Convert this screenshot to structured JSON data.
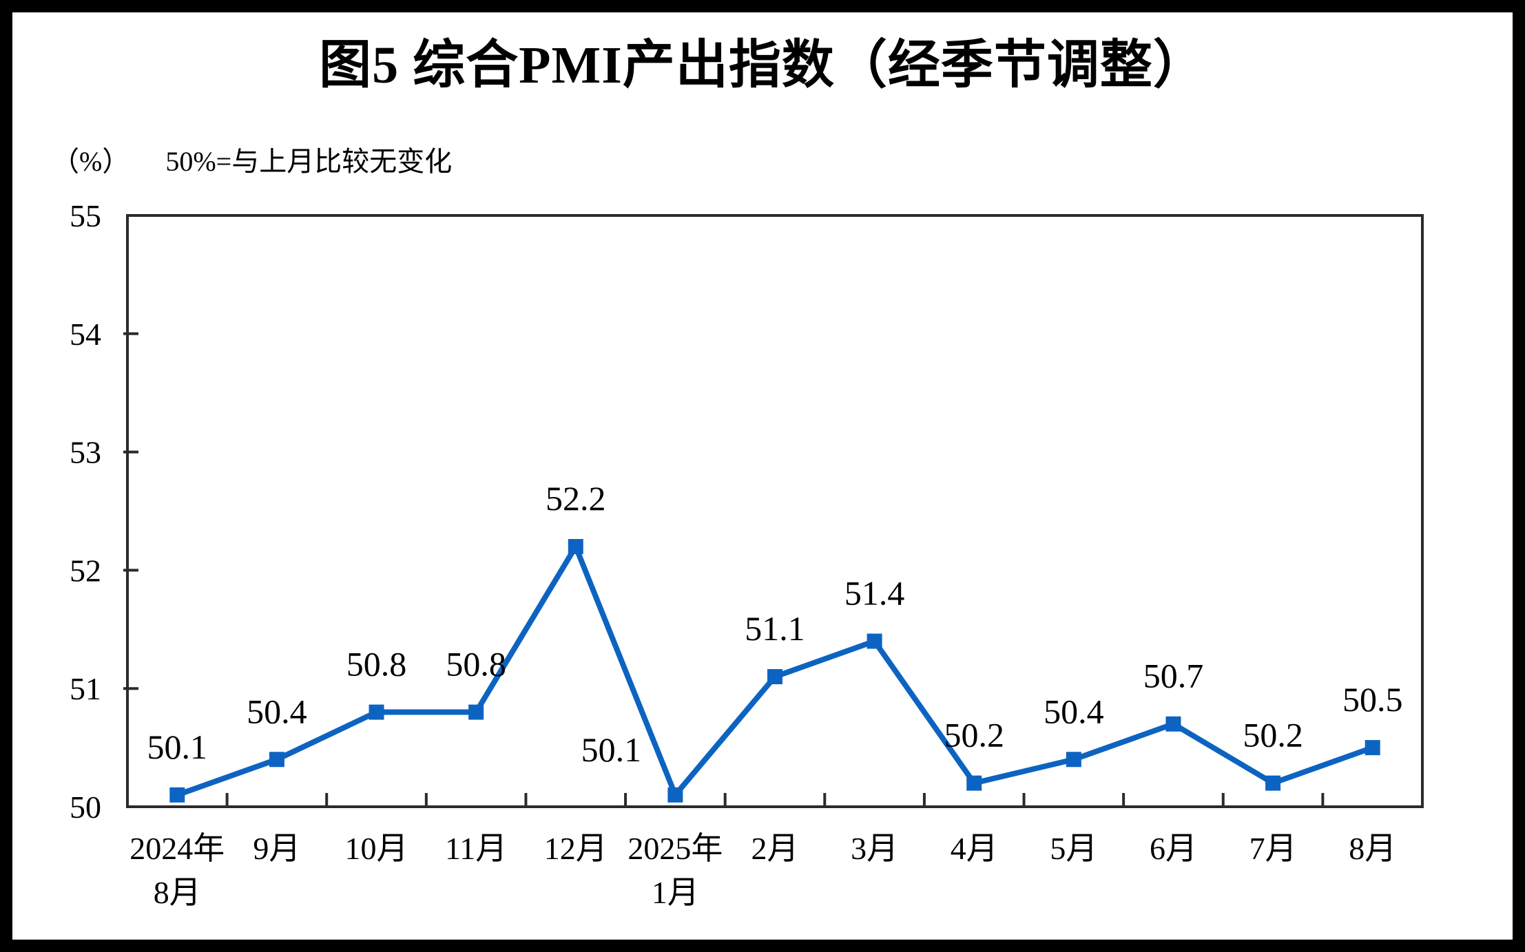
{
  "title": "图5 综合PMI产出指数（经季节调整）",
  "unit_label": "（%）",
  "note": "50%=与上月比较无变化",
  "chart_data": {
    "type": "line",
    "title": "图5 综合PMI产出指数（经季节调整）",
    "note": "50%=与上月比较无变化",
    "y_unit": "（%）",
    "categories": [
      "2024年\n8月",
      "9月",
      "10月",
      "11月",
      "12月",
      "2025年\n1月",
      "2月",
      "3月",
      "4月",
      "5月",
      "6月",
      "7月",
      "8月"
    ],
    "values": [
      50.1,
      50.4,
      50.8,
      50.8,
      52.2,
      50.1,
      51.1,
      51.4,
      50.2,
      50.4,
      50.7,
      50.2,
      50.5
    ],
    "data_labels": [
      "50.1",
      "50.4",
      "50.8",
      "50.8",
      "52.2",
      "50.1",
      "51.1",
      "51.4",
      "50.2",
      "50.4",
      "50.7",
      "50.2",
      "50.5"
    ],
    "yticks": [
      50,
      51,
      52,
      53,
      54,
      55
    ],
    "ylim": [
      50,
      55
    ],
    "xlabel": "",
    "ylabel": "",
    "grid": false,
    "legend": "none",
    "marker": "square",
    "line_color": "#0D63C1",
    "axis_color": "#2b2b2b",
    "label_offsets": {
      "5": {
        "dx": -93,
        "dy": 4
      }
    }
  }
}
